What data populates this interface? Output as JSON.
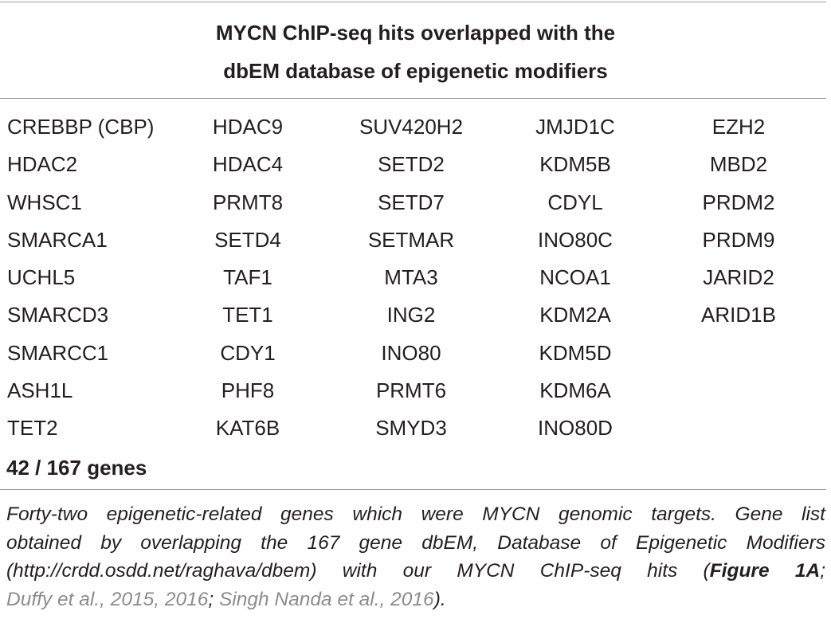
{
  "title_line1": "MYCN ChIP-seq hits overlapped with the",
  "title_line2": "dbEM database of epigenetic modifiers",
  "rows": [
    [
      "CREBBP (CBP)",
      "HDAC9",
      "SUV420H2",
      "JMJD1C",
      "EZH2"
    ],
    [
      "HDAC2",
      "HDAC4",
      "SETD2",
      "KDM5B",
      "MBD2"
    ],
    [
      "WHSC1",
      "PRMT8",
      "SETD7",
      "CDYL",
      "PRDM2"
    ],
    [
      "SMARCA1",
      "SETD4",
      "SETMAR",
      "INO80C",
      "PRDM9"
    ],
    [
      "UCHL5",
      "TAF1",
      "MTA3",
      "NCOA1",
      "JARID2"
    ],
    [
      "SMARCD3",
      "TET1",
      "ING2",
      "KDM2A",
      "ARID1B"
    ],
    [
      "SMARCC1",
      "CDY1",
      "INO80",
      "KDM5D",
      ""
    ],
    [
      "ASH1L",
      "PHF8",
      "PRMT6",
      "KDM6A",
      ""
    ],
    [
      "TET2",
      "KAT6B",
      "SMYD3",
      "INO80D",
      ""
    ]
  ],
  "count_label": "42 / 167 genes",
  "caption": {
    "line1": "Forty-two epigenetic-related genes which were MYCN genomic targets. Gene list",
    "line2": "obtained by overlapping the 167 gene dbEM, Database of Epigenetic Modifiers",
    "line3_pre": "(http://crdd.osdd.net/raghava/dbem) with our MYCN ChIP-seq hits (",
    "line3_fig": "Figure 1A",
    "line3_post": ";",
    "line4_cite1": "Duffy et al., 2015, 2016",
    "line4_sep": "; ",
    "line4_cite2": "Singh Nanda et al., 2016",
    "line4_end": ")."
  }
}
